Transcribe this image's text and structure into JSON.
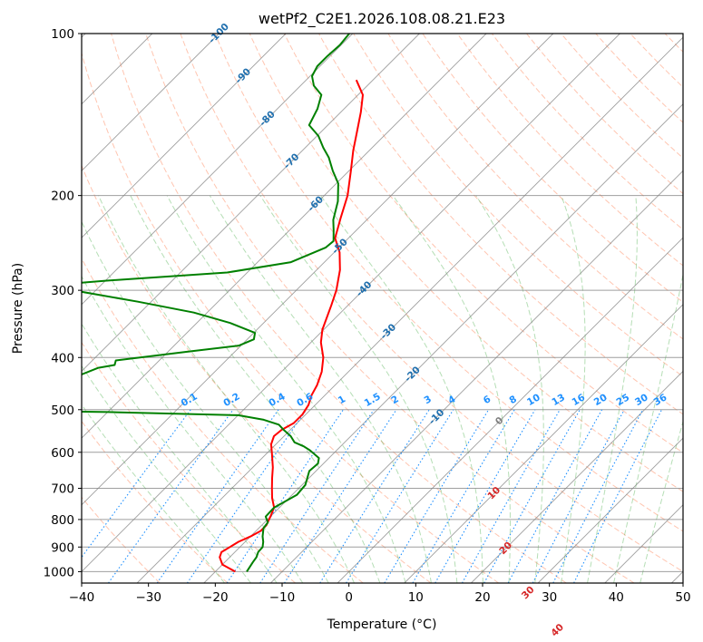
{
  "chart_data": {
    "type": "line",
    "subtype": "skew-T log-P diagram",
    "title": "wetPf2_C2E1.2026.108.08.21.E23",
    "xlabel": "Temperature (°C)",
    "ylabel": "Pressure (hPa)",
    "xlim": [
      -40,
      50
    ],
    "ylim": [
      1050,
      100
    ],
    "yscale": "log",
    "x_ticks": [
      "−40",
      "−30",
      "−20",
      "−10",
      "0",
      "10",
      "20",
      "30",
      "40",
      "50"
    ],
    "y_ticks": [
      {
        "p": 100,
        "label": "100"
      },
      {
        "p": 200,
        "label": "200"
      },
      {
        "p": 300,
        "label": "300"
      },
      {
        "p": 400,
        "label": "400"
      },
      {
        "p": 500,
        "label": "500"
      },
      {
        "p": 600,
        "label": "600"
      },
      {
        "p": 700,
        "label": "700"
      },
      {
        "p": 800,
        "label": "800"
      },
      {
        "p": 900,
        "label": "900"
      },
      {
        "p": 1000,
        "label": "1000"
      }
    ],
    "grid": true,
    "isotherm_labels": [
      "-100",
      "-90",
      "-80",
      "-70",
      "-60",
      "-50",
      "-40",
      "-30",
      "-20",
      "-10",
      "0",
      "10",
      "20",
      "30",
      "40"
    ],
    "mixing_ratio_labels": [
      "0.1",
      "0.2",
      "0.4",
      "0.6",
      "1",
      "1.5",
      "2",
      "3",
      "4",
      "6",
      "8",
      "10",
      "13",
      "16",
      "20",
      "25",
      "30",
      "36"
    ],
    "series": [
      {
        "role": "temperature",
        "color": "#ff0000",
        "points": [
          [
            -17,
            1000
          ],
          [
            -20,
            970
          ],
          [
            -21.5,
            940
          ],
          [
            -22,
            920
          ],
          [
            -21.5,
            900
          ],
          [
            -21,
            880
          ],
          [
            -20,
            860
          ],
          [
            -19.3,
            840
          ],
          [
            -19.3,
            820
          ],
          [
            -20,
            790
          ],
          [
            -20.8,
            760
          ],
          [
            -22.5,
            730
          ],
          [
            -24,
            700
          ],
          [
            -25.5,
            670
          ],
          [
            -27,
            640
          ],
          [
            -29.4,
            600
          ],
          [
            -30.7,
            580
          ],
          [
            -31.5,
            560
          ],
          [
            -31.3,
            545
          ],
          [
            -30.5,
            530
          ],
          [
            -30.5,
            510
          ],
          [
            -31,
            490
          ],
          [
            -32,
            470
          ],
          [
            -32.7,
            450
          ],
          [
            -34,
            425
          ],
          [
            -35.9,
            400
          ],
          [
            -38.5,
            375
          ],
          [
            -40.2,
            355
          ],
          [
            -42.5,
            320
          ],
          [
            -44,
            300
          ],
          [
            -46.5,
            275
          ],
          [
            -49.2,
            255
          ],
          [
            -52,
            240
          ],
          [
            -54.2,
            220
          ],
          [
            -56.5,
            200
          ],
          [
            -59.7,
            180
          ],
          [
            -62.4,
            165
          ],
          [
            -64.5,
            153
          ],
          [
            -67,
            140
          ],
          [
            -69.3,
            130
          ],
          [
            -72.5,
            122
          ]
        ]
      },
      {
        "role": "dewpoint",
        "color": "#008000",
        "points": [
          [
            -15.3,
            1000
          ],
          [
            -15.8,
            960
          ],
          [
            -16,
            940
          ],
          [
            -16.5,
            920
          ],
          [
            -16.6,
            900
          ],
          [
            -17.3,
            880
          ],
          [
            -18.2,
            860
          ],
          [
            -19.3,
            830
          ],
          [
            -19.5,
            810
          ],
          [
            -20.7,
            790
          ],
          [
            -20.8,
            760
          ],
          [
            -19.3,
            720
          ],
          [
            -19.5,
            690
          ],
          [
            -21,
            650
          ],
          [
            -20.8,
            630
          ],
          [
            -21.5,
            615
          ],
          [
            -24,
            595
          ],
          [
            -25.5,
            585
          ],
          [
            -27.5,
            575
          ],
          [
            -29,
            560
          ],
          [
            -31,
            545
          ],
          [
            -32.5,
            533
          ],
          [
            -35.5,
            522
          ],
          [
            -40,
            512
          ],
          [
            -60,
            505
          ],
          [
            -100,
            498
          ],
          [
            -101,
            490
          ],
          [
            -92,
            486
          ],
          [
            -85,
            484
          ],
          [
            -80,
            478
          ],
          [
            -74.5,
            455
          ],
          [
            -70.5,
            438
          ],
          [
            -68,
            418
          ],
          [
            -66,
            413
          ],
          [
            -66.5,
            405
          ],
          [
            -57,
            390
          ],
          [
            -50.3,
            380
          ],
          [
            -49,
            370
          ],
          [
            -49.8,
            360
          ],
          [
            -55,
            345
          ],
          [
            -62,
            330
          ],
          [
            -72,
            315
          ],
          [
            -85,
            298
          ],
          [
            -87,
            293
          ],
          [
            -80,
            288
          ],
          [
            -63,
            278
          ],
          [
            -55,
            266
          ],
          [
            -52,
            250
          ],
          [
            -51.8,
            243
          ],
          [
            -53.4,
            232
          ],
          [
            -55,
            222
          ],
          [
            -57.1,
            205
          ],
          [
            -59.7,
            190
          ],
          [
            -62.4,
            180
          ],
          [
            -65,
            170
          ],
          [
            -67.3,
            163
          ],
          [
            -69.8,
            155
          ],
          [
            -72.8,
            148
          ],
          [
            -74,
            138
          ],
          [
            -75.5,
            130
          ],
          [
            -78,
            125
          ],
          [
            -79.7,
            120
          ],
          [
            -80.4,
            115
          ],
          [
            -80.4,
            110
          ],
          [
            -80.2,
            105
          ],
          [
            -80.5,
            100
          ]
        ]
      }
    ]
  },
  "colors": {
    "isotherm": "#1f6fae",
    "dry_adiabat": "#ff7f50",
    "moist_adiabat": "#2ca02c",
    "mixing_ratio": "#1e90ff",
    "warm_label": "#d62728",
    "zero_label": "#808080"
  }
}
